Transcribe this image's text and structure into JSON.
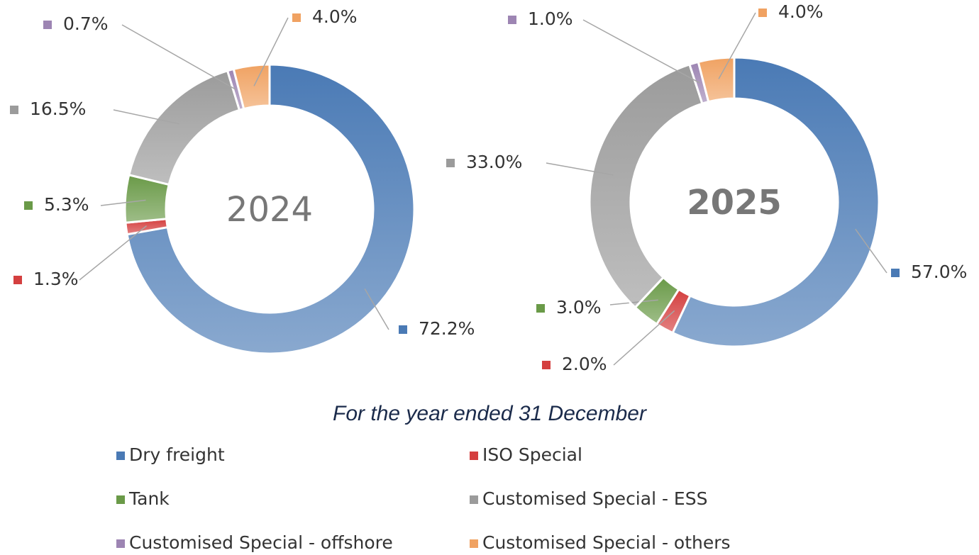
{
  "chart_data": [
    {
      "type": "pie",
      "title": "2024",
      "title_bold": false,
      "categories": [
        "Dry freight",
        "ISO Special",
        "Tank",
        "Customised Special - ESS",
        "Customised Special - offshore",
        "Customised Special - others"
      ],
      "colors": [
        "#4a7ab5",
        "#d43f3f",
        "#6a9a48",
        "#9b9b9b",
        "#9d85b3",
        "#f0a262"
      ],
      "values": [
        72.2,
        1.3,
        5.3,
        16.5,
        0.7,
        4.0
      ],
      "value_labels": [
        "72.2%",
        "1.3%",
        "5.3%",
        "16.5%",
        "0.7%",
        "4.0%"
      ]
    },
    {
      "type": "pie",
      "title": "2025",
      "title_bold": true,
      "values": [
        57.0,
        2.0,
        3.0,
        33.0,
        1.0,
        4.0
      ],
      "value_labels": [
        "57.0%",
        "2.0%",
        "3.0%",
        "33.0%",
        "1.0%",
        "4.0%"
      ]
    }
  ],
  "caption": "For the year ended 31 December"
}
